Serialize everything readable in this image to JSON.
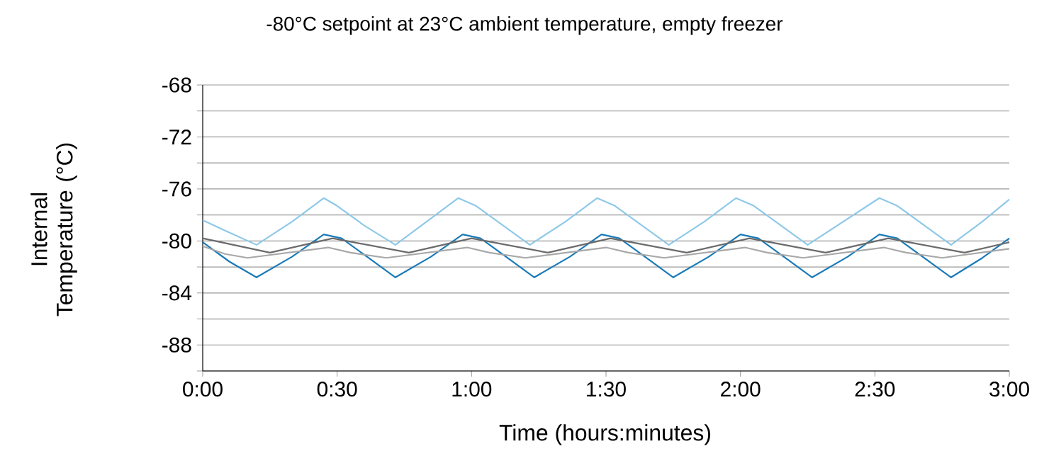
{
  "chart_data": {
    "type": "line",
    "title": "-80°C setpoint at 23°C ambient temperature, empty freezer",
    "xlabel": "Time (hours:minutes)",
    "ylabel": "Internal Temperature (°C)",
    "grid": "y",
    "xlim": [
      0,
      180
    ],
    "xticks": [
      {
        "value": 0,
        "label": "0:00"
      },
      {
        "value": 30,
        "label": "0:30"
      },
      {
        "value": 60,
        "label": "1:00"
      },
      {
        "value": 90,
        "label": "1:30"
      },
      {
        "value": 120,
        "label": "2:00"
      },
      {
        "value": 150,
        "label": "2:30"
      },
      {
        "value": 180,
        "label": "3:00"
      }
    ],
    "ylim": [
      -90,
      -68
    ],
    "yticks": [
      {
        "value": -90,
        "label": null
      },
      -88,
      {
        "value": -86,
        "label": null
      },
      -84,
      {
        "value": -82,
        "label": null
      },
      -80,
      {
        "value": -78,
        "label": null
      },
      -76,
      {
        "value": -74,
        "label": null
      },
      -72,
      {
        "value": -70,
        "label": null
      },
      -68
    ],
    "series": [
      {
        "color": "#8ec9e8",
        "x": [
          0,
          5,
          12,
          20,
          27,
          30,
          36,
          43,
          50,
          57,
          61,
          67,
          73,
          81,
          88,
          92,
          98,
          104,
          112,
          119,
          123,
          129,
          135,
          143,
          151,
          155,
          161,
          167,
          174,
          180
        ],
        "values": [
          -78.4,
          -79.2,
          -80.3,
          -78.5,
          -76.7,
          -77.3,
          -78.8,
          -80.3,
          -78.5,
          -76.7,
          -77.3,
          -78.8,
          -80.3,
          -78.5,
          -76.7,
          -77.3,
          -78.8,
          -80.3,
          -78.5,
          -76.7,
          -77.3,
          -78.8,
          -80.3,
          -78.5,
          -76.7,
          -77.3,
          -78.8,
          -80.3,
          -78.5,
          -76.8
        ]
      },
      {
        "color": "#1a7ab8",
        "x": [
          0,
          6,
          12,
          20,
          27,
          31,
          37,
          43,
          51,
          58,
          62,
          68,
          74,
          82,
          89,
          93,
          99,
          105,
          113,
          120,
          124,
          130,
          136,
          144,
          151,
          155,
          161,
          167,
          174,
          180
        ],
        "values": [
          -80.1,
          -81.6,
          -82.8,
          -81.2,
          -79.5,
          -79.8,
          -81.3,
          -82.8,
          -81.2,
          -79.5,
          -79.8,
          -81.3,
          -82.8,
          -81.2,
          -79.5,
          -79.8,
          -81.3,
          -82.8,
          -81.2,
          -79.5,
          -79.8,
          -81.3,
          -82.8,
          -81.2,
          -79.5,
          -79.8,
          -81.3,
          -82.8,
          -81.3,
          -79.8
        ]
      },
      {
        "color": "#6b6b6b",
        "x": [
          0,
          15,
          29,
          46,
          60,
          77,
          91,
          108,
          122,
          139,
          153,
          170,
          180
        ],
        "values": [
          -79.8,
          -80.9,
          -79.8,
          -80.9,
          -79.8,
          -80.9,
          -79.8,
          -80.9,
          -79.8,
          -80.9,
          -79.8,
          -80.9,
          -80.1
        ]
      },
      {
        "color": "#a8a8a8",
        "x": [
          0,
          5,
          10,
          28,
          33,
          41,
          59,
          64,
          72,
          90,
          95,
          103,
          121,
          126,
          134,
          152,
          157,
          165,
          180
        ],
        "values": [
          -80.4,
          -81.0,
          -81.3,
          -80.5,
          -80.9,
          -81.3,
          -80.5,
          -80.9,
          -81.3,
          -80.5,
          -80.9,
          -81.3,
          -80.5,
          -80.9,
          -81.3,
          -80.5,
          -80.9,
          -81.3,
          -80.6
        ]
      }
    ]
  }
}
